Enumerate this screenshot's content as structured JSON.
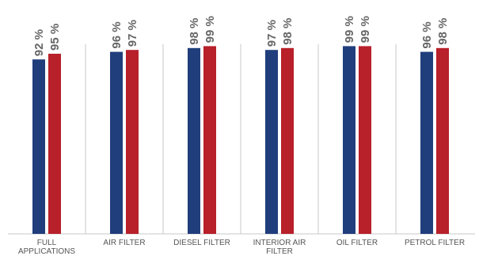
{
  "chart_data": {
    "type": "bar",
    "categories": [
      "FULL APPLICATIONS",
      "AIR FILTER",
      "DIESEL FILTER",
      "INTERIOR AIR FILTER",
      "OIL FILTER",
      "PETROL FILTER"
    ],
    "series": [
      {
        "values": [
          92,
          96,
          98,
          97,
          99,
          96
        ],
        "labels": [
          "92 %",
          "96 %",
          "98 %",
          "97 %",
          "99 %",
          "96 %"
        ],
        "color": "#203e7c"
      },
      {
        "values": [
          95,
          97,
          99,
          98,
          99,
          98
        ],
        "labels": [
          "95 %",
          "97 %",
          "99 %",
          "98 %",
          "99 %",
          "98 %"
        ],
        "color": "#b8202a"
      }
    ],
    "ylim": [
      0,
      100
    ],
    "grid": false,
    "separator_color": "#c8c8c8"
  }
}
